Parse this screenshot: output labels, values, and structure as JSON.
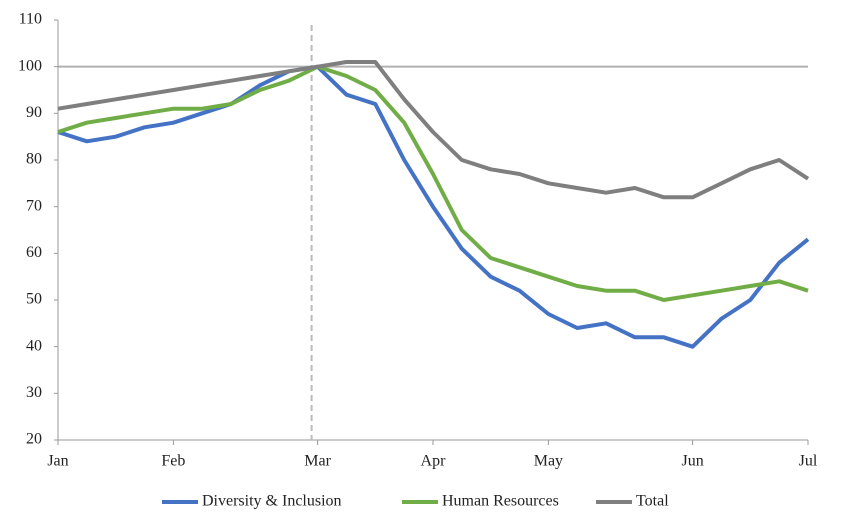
{
  "chart_data": {
    "type": "line",
    "categories": [
      "Jan",
      null,
      null,
      null,
      "Feb",
      null,
      null,
      null,
      null,
      "Mar",
      null,
      null,
      null,
      "Apr",
      null,
      null,
      null,
      "May",
      null,
      null,
      null,
      null,
      "Jun",
      null,
      null,
      null,
      "Jul"
    ],
    "series": [
      {
        "name": "Diversity & Inclusion",
        "color": "#4472c4",
        "values": [
          86,
          84,
          85,
          87,
          88,
          90,
          92,
          96,
          99,
          100,
          94,
          92,
          80,
          70,
          61,
          55,
          52,
          47,
          44,
          45,
          42,
          42,
          40,
          46,
          50,
          58,
          63
        ]
      },
      {
        "name": "Human Resources",
        "color": "#70ad47",
        "values": [
          86,
          88,
          89,
          90,
          91,
          91,
          92,
          95,
          97,
          100,
          98,
          95,
          88,
          77,
          65,
          59,
          57,
          55,
          53,
          52,
          52,
          50,
          51,
          52,
          53,
          54,
          52
        ]
      },
      {
        "name": "Total",
        "color": "#7f7f7f",
        "values": [
          91,
          92,
          93,
          94,
          95,
          96,
          97,
          98,
          99,
          100,
          101,
          101,
          93,
          86,
          80,
          78,
          77,
          75,
          74,
          73,
          74,
          72,
          72,
          75,
          78,
          80,
          76
        ]
      }
    ],
    "ylim": [
      20,
      110
    ],
    "yticks": [
      20,
      30,
      40,
      50,
      60,
      70,
      80,
      90,
      100,
      110
    ],
    "hline": 100,
    "legend": "bottom"
  }
}
